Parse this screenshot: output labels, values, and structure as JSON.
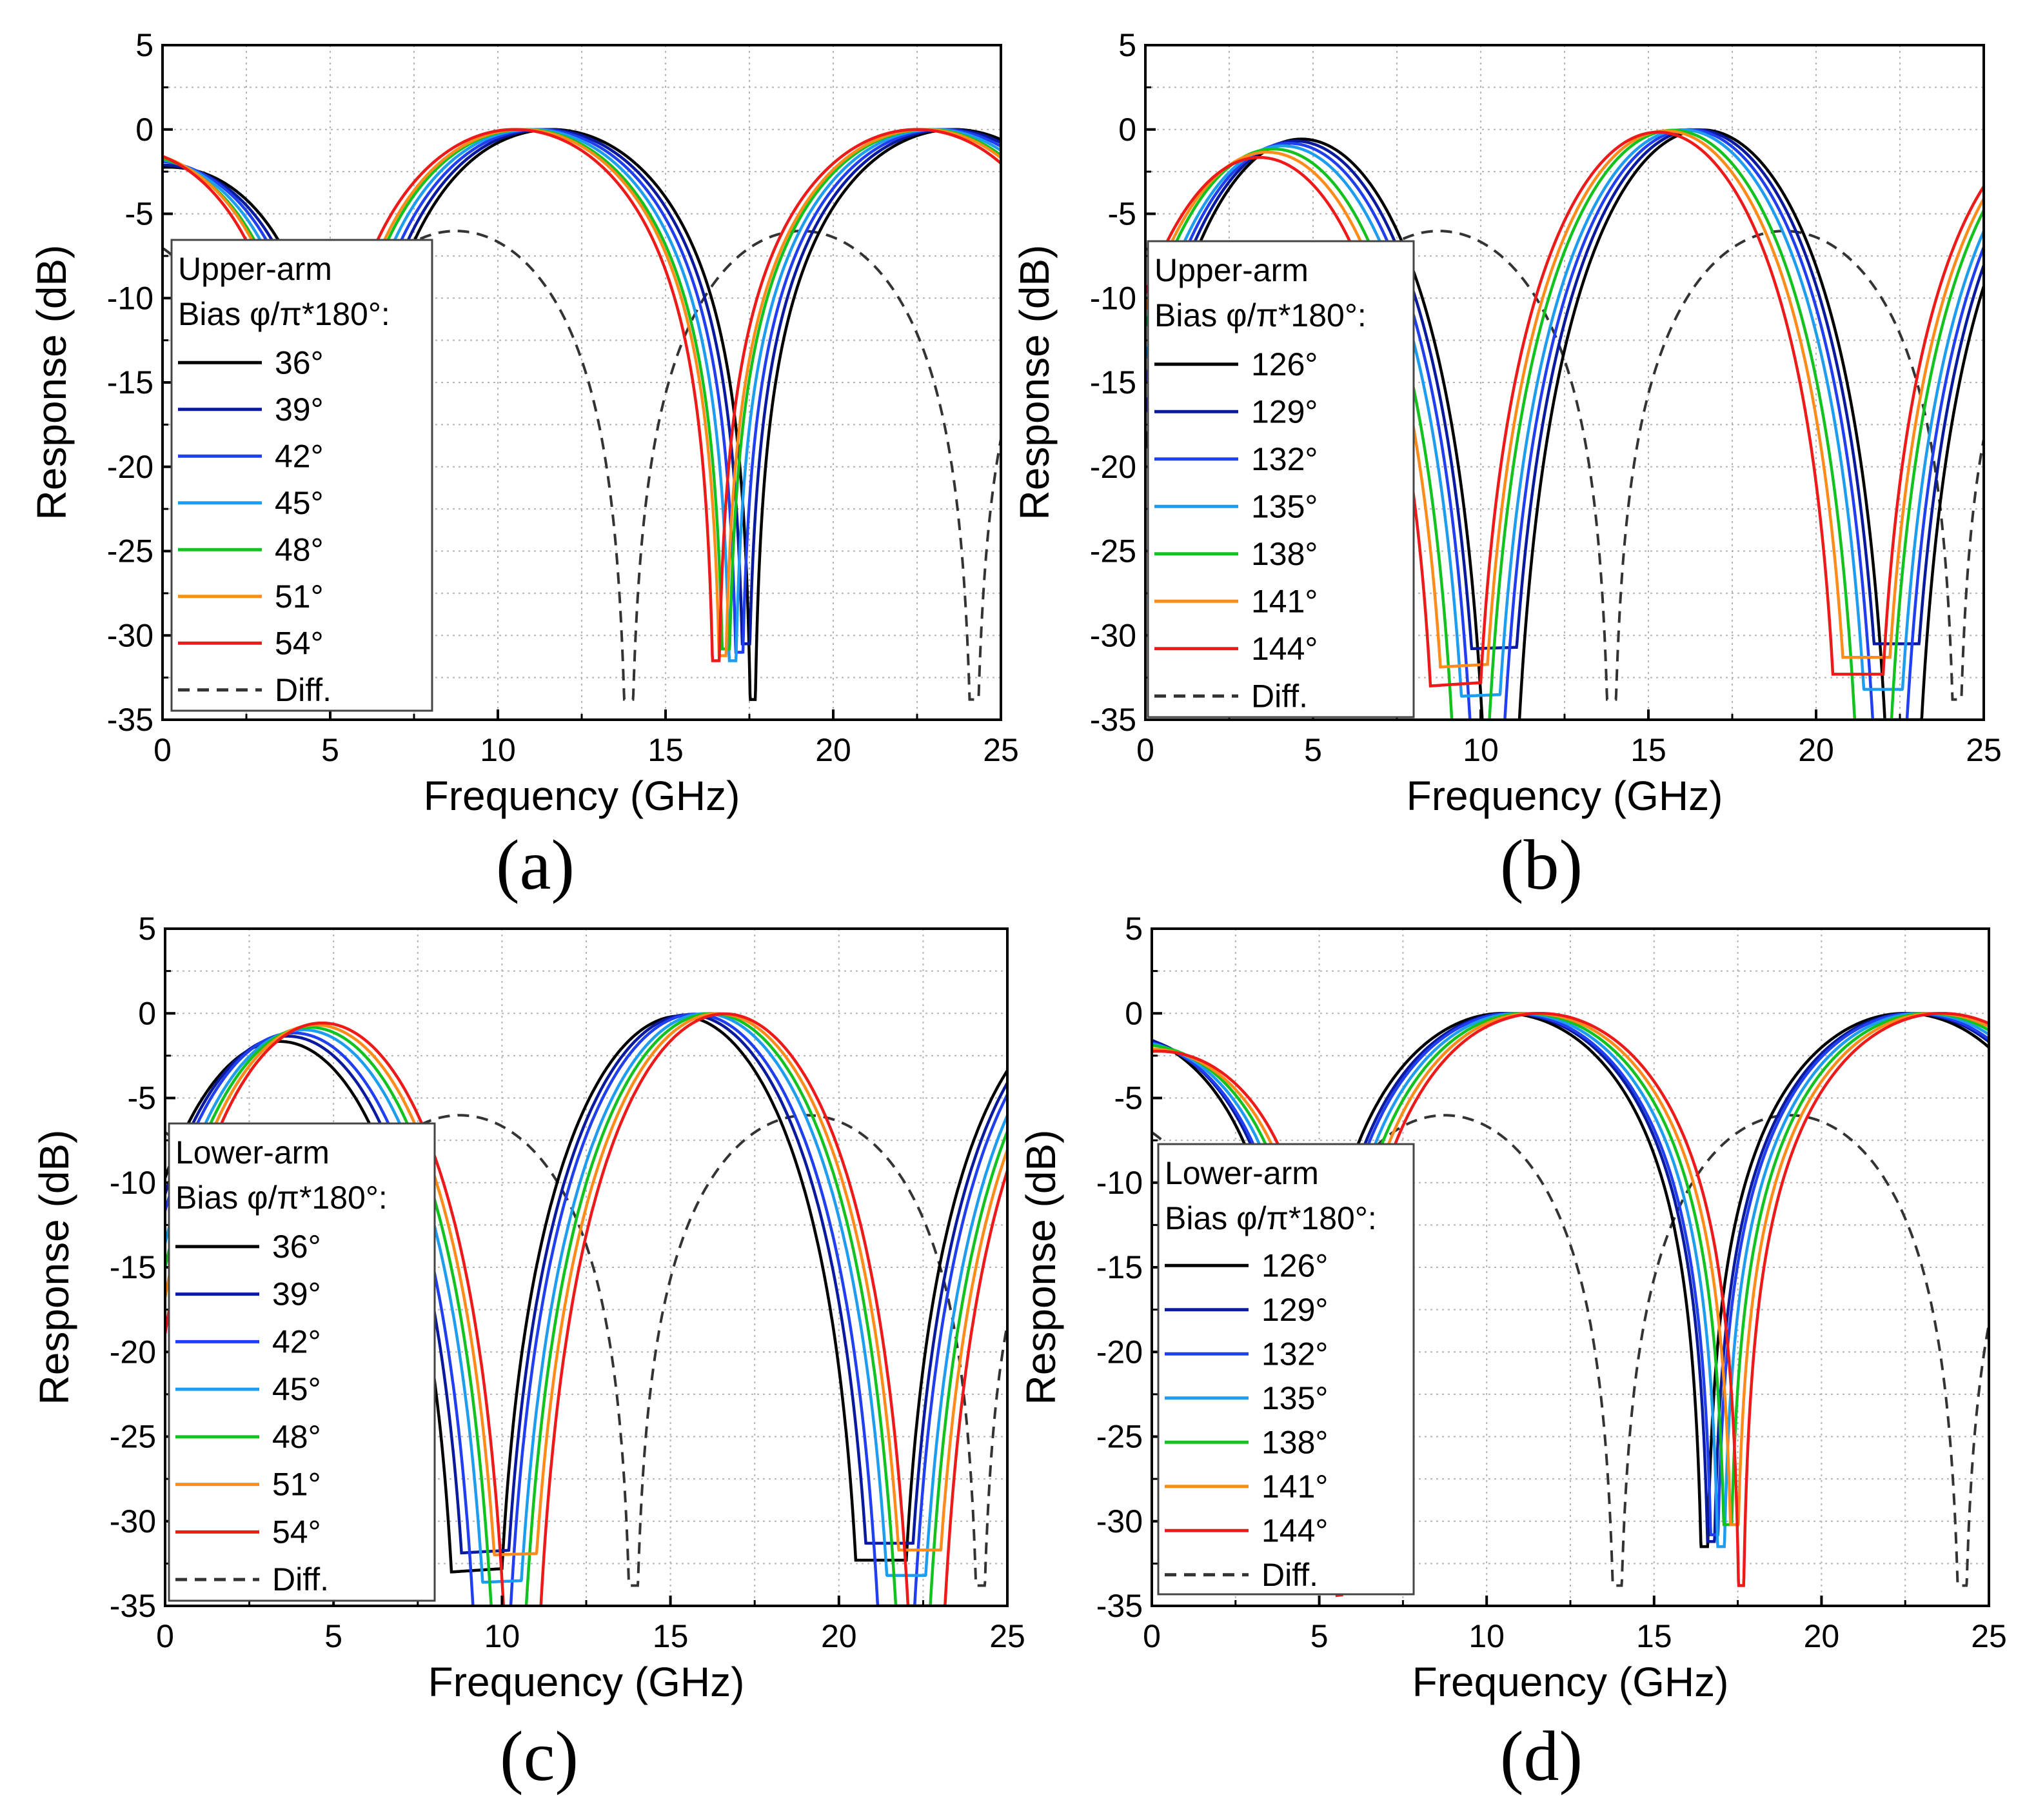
{
  "figure": {
    "panel_labels": [
      "(a)",
      "(b)",
      "(c)",
      "(d)"
    ]
  },
  "colors": {
    "series": [
      "#000000",
      "#0a1a9e",
      "#1f3ff0",
      "#1e9df0",
      "#12c21e",
      "#ff8c1a",
      "#ee1a1a"
    ],
    "diff": "#333333",
    "grid": "#b4b4b4"
  },
  "chart_data": [
    {
      "type": "line",
      "panel": "(a)",
      "xlabel": "Frequency (GHz)",
      "ylabel": "Response (dB)",
      "xlim": [
        0,
        25
      ],
      "ylim": [
        -35,
        5
      ],
      "xticks": [
        "0",
        "5",
        "10",
        "15",
        "20",
        "25"
      ],
      "yticks": [
        "5",
        "0",
        "-5",
        "-10",
        "-15",
        "-20",
        "-25",
        "-30",
        "-35"
      ],
      "grid": true,
      "legend": {
        "position": "left-middle",
        "title1": "Upper-arm",
        "title2": "Bias φ/π*180°:",
        "entries": [
          "36°",
          "39°",
          "42°",
          "45°",
          "48°",
          "51°",
          "54°",
          "Diff."
        ]
      },
      "series": [
        {
          "name": "36°",
          "null_ghz": [
            17.6
          ],
          "peak_ghz": [
            9.8,
            22.2
          ],
          "dc_db": -2.2,
          "null_db": -33.8
        },
        {
          "name": "39°",
          "null_ghz": [
            17.4
          ],
          "peak_ghz": [
            9.9,
            22.1
          ],
          "dc_db": -2.0,
          "null_db": -30.5
        },
        {
          "name": "42°",
          "null_ghz": [
            17.2
          ],
          "peak_ghz": [
            10.0,
            22.0
          ],
          "dc_db": -1.7,
          "null_db": -31.0
        },
        {
          "name": "45°",
          "null_ghz": [
            17.0
          ],
          "peak_ghz": [
            10.0,
            21.9
          ],
          "dc_db": -1.5,
          "null_db": -31.5
        },
        {
          "name": "48°",
          "null_ghz": [
            16.8
          ],
          "peak_ghz": [
            10.1,
            21.8
          ],
          "dc_db": -1.3,
          "null_db": -30.8
        },
        {
          "name": "51°",
          "null_ghz": [
            16.7
          ],
          "peak_ghz": [
            10.2,
            21.8
          ],
          "dc_db": -1.1,
          "null_db": -31.2
        },
        {
          "name": "54°",
          "null_ghz": [
            16.5
          ],
          "peak_ghz": [
            10.3,
            21.7
          ],
          "dc_db": -0.9,
          "null_db": -31.5
        },
        {
          "name": "Diff.",
          "null_ghz": [
            13.9,
            24.2
          ],
          "peak_ghz": [
            0,
            19.8
          ],
          "dc_db": 0,
          "null_db": -33.8
        }
      ]
    },
    {
      "type": "line",
      "panel": "(b)",
      "xlabel": "Frequency (GHz)",
      "ylabel": "Response (dB)",
      "xlim": [
        0,
        25
      ],
      "ylim": [
        -35,
        5
      ],
      "xticks": [
        "0",
        "5",
        "10",
        "15",
        "20",
        "25"
      ],
      "yticks": [
        "5",
        "0",
        "-5",
        "-10",
        "-15",
        "-20",
        "-25",
        "-30",
        "-35"
      ],
      "grid": true,
      "legend": {
        "position": "left-middle",
        "title1": "Upper-arm",
        "title2": "Bias φ/π*180°:",
        "entries": [
          "126°",
          "129°",
          "132°",
          "135°",
          "138°",
          "141°",
          "144°",
          "Diff."
        ]
      },
      "series": [
        {
          "name": "126°",
          "null_ghz": [
            10.8,
            22.4
          ],
          "peak_ghz": [
            17.2
          ],
          "dc_db": -0.9,
          "null_db": -35
        },
        {
          "name": "129°",
          "null_ghz": [
            10.5,
            22.3
          ],
          "peak_ghz": [
            17.1
          ],
          "dc_db": -1.1,
          "null_db": -30.5
        },
        {
          "name": "132°",
          "null_ghz": [
            10.2,
            22.2
          ],
          "peak_ghz": [
            17.0
          ],
          "dc_db": -1.3,
          "null_db": -35
        },
        {
          "name": "135°",
          "null_ghz": [
            9.9,
            22.1
          ],
          "peak_ghz": [
            16.9
          ],
          "dc_db": -1.5,
          "null_db": -33.2
        },
        {
          "name": "138°",
          "null_ghz": [
            9.5,
            21.9
          ],
          "peak_ghz": [
            16.8
          ],
          "dc_db": -1.7,
          "null_db": -35
        },
        {
          "name": "141°",
          "null_ghz": [
            9.2,
            21.8
          ],
          "peak_ghz": [
            16.7
          ],
          "dc_db": -1.9,
          "null_db": -31.3
        },
        {
          "name": "144°",
          "null_ghz": [
            8.8,
            21.7
          ],
          "peak_ghz": [
            16.6
          ],
          "dc_db": -2.2,
          "null_db": -32.3
        },
        {
          "name": "Diff.",
          "null_ghz": [
            13.9,
            24.2
          ],
          "peak_ghz": [
            0,
            19.8
          ],
          "dc_db": 0,
          "null_db": -33.8
        }
      ]
    },
    {
      "type": "line",
      "panel": "(c)",
      "xlabel": "Frequency (GHz)",
      "ylabel": "Response (dB)",
      "xlim": [
        0,
        25
      ],
      "ylim": [
        -35,
        5
      ],
      "xticks": [
        "0",
        "5",
        "10",
        "15",
        "20",
        "25"
      ],
      "yticks": [
        "5",
        "0",
        "-5",
        "-10",
        "-15",
        "-20",
        "-25",
        "-30",
        "-35"
      ],
      "grid": true,
      "legend": {
        "position": "left-middle",
        "title1": "Lower-arm",
        "title2": "Bias φ/π*180°:",
        "entries": [
          "36°",
          "39°",
          "42°",
          "45°",
          "48°",
          "51°",
          "54°",
          "Diff."
        ]
      },
      "series": [
        {
          "name": "36°",
          "null_ghz": [
            8.8,
            21.7
          ],
          "peak_ghz": [
            16.6
          ],
          "dc_db": -2.2,
          "null_db": -32.3
        },
        {
          "name": "39°",
          "null_ghz": [
            9.2,
            21.8
          ],
          "peak_ghz": [
            16.7
          ],
          "dc_db": -1.9,
          "null_db": -31.3
        },
        {
          "name": "42°",
          "null_ghz": [
            9.5,
            21.9
          ],
          "peak_ghz": [
            16.8
          ],
          "dc_db": -1.7,
          "null_db": -35
        },
        {
          "name": "45°",
          "null_ghz": [
            9.9,
            22.1
          ],
          "peak_ghz": [
            16.9
          ],
          "dc_db": -1.5,
          "null_db": -33.2
        },
        {
          "name": "48°",
          "null_ghz": [
            10.2,
            22.2
          ],
          "peak_ghz": [
            17.0
          ],
          "dc_db": -1.3,
          "null_db": -35
        },
        {
          "name": "51°",
          "null_ghz": [
            10.5,
            22.3
          ],
          "peak_ghz": [
            17.1
          ],
          "dc_db": -1.1,
          "null_db": -31.7
        },
        {
          "name": "54°",
          "null_ghz": [
            10.8,
            22.4
          ],
          "peak_ghz": [
            17.2
          ],
          "dc_db": -0.9,
          "null_db": -35
        },
        {
          "name": "Diff.",
          "null_ghz": [
            13.9,
            24.2
          ],
          "peak_ghz": [
            0,
            19.8
          ],
          "dc_db": 0,
          "null_db": -33.8
        }
      ]
    },
    {
      "type": "line",
      "panel": "(d)",
      "xlabel": "Frequency (GHz)",
      "ylabel": "Response (dB)",
      "xlim": [
        0,
        25
      ],
      "ylim": [
        -35,
        5
      ],
      "xticks": [
        "0",
        "5",
        "10",
        "15",
        "20",
        "25"
      ],
      "yticks": [
        "5",
        "0",
        "-5",
        "-10",
        "-15",
        "-20",
        "-25",
        "-30",
        "-35"
      ],
      "grid": true,
      "legend": {
        "position": "left-middle",
        "title1": "Lower-arm",
        "title2": "Bias φ/π*180°:",
        "entries": [
          "126°",
          "129°",
          "132°",
          "135°",
          "138°",
          "141°",
          "144°",
          "Diff."
        ]
      },
      "series": [
        {
          "name": "126°",
          "null_ghz": [
            16.5
          ],
          "peak_ghz": [
            10.3,
            21.7
          ],
          "dc_db": -0.9,
          "null_db": -31.5
        },
        {
          "name": "129°",
          "null_ghz": [
            16.7
          ],
          "peak_ghz": [
            10.2,
            21.8
          ],
          "dc_db": -1.1,
          "null_db": -31.2
        },
        {
          "name": "132°",
          "null_ghz": [
            16.8
          ],
          "peak_ghz": [
            10.1,
            21.8
          ],
          "dc_db": -1.3,
          "null_db": -30.8
        },
        {
          "name": "135°",
          "null_ghz": [
            17.0
          ],
          "peak_ghz": [
            10.0,
            21.9
          ],
          "dc_db": -1.5,
          "null_db": -31.5
        },
        {
          "name": "138°",
          "null_ghz": [
            17.2
          ],
          "peak_ghz": [
            10.0,
            22.0
          ],
          "dc_db": -1.7,
          "null_db": -30.2
        },
        {
          "name": "141°",
          "null_ghz": [
            17.4
          ],
          "peak_ghz": [
            9.9,
            22.1
          ],
          "dc_db": -2.0,
          "null_db": -30.2
        },
        {
          "name": "144°",
          "null_ghz": [
            17.6
          ],
          "peak_ghz": [
            9.8,
            22.2
          ],
          "dc_db": -2.2,
          "null_db": -33.8
        },
        {
          "name": "Diff.",
          "null_ghz": [
            13.9,
            24.2
          ],
          "peak_ghz": [
            0,
            19.8
          ],
          "dc_db": 0,
          "null_db": -33.8
        }
      ]
    }
  ]
}
